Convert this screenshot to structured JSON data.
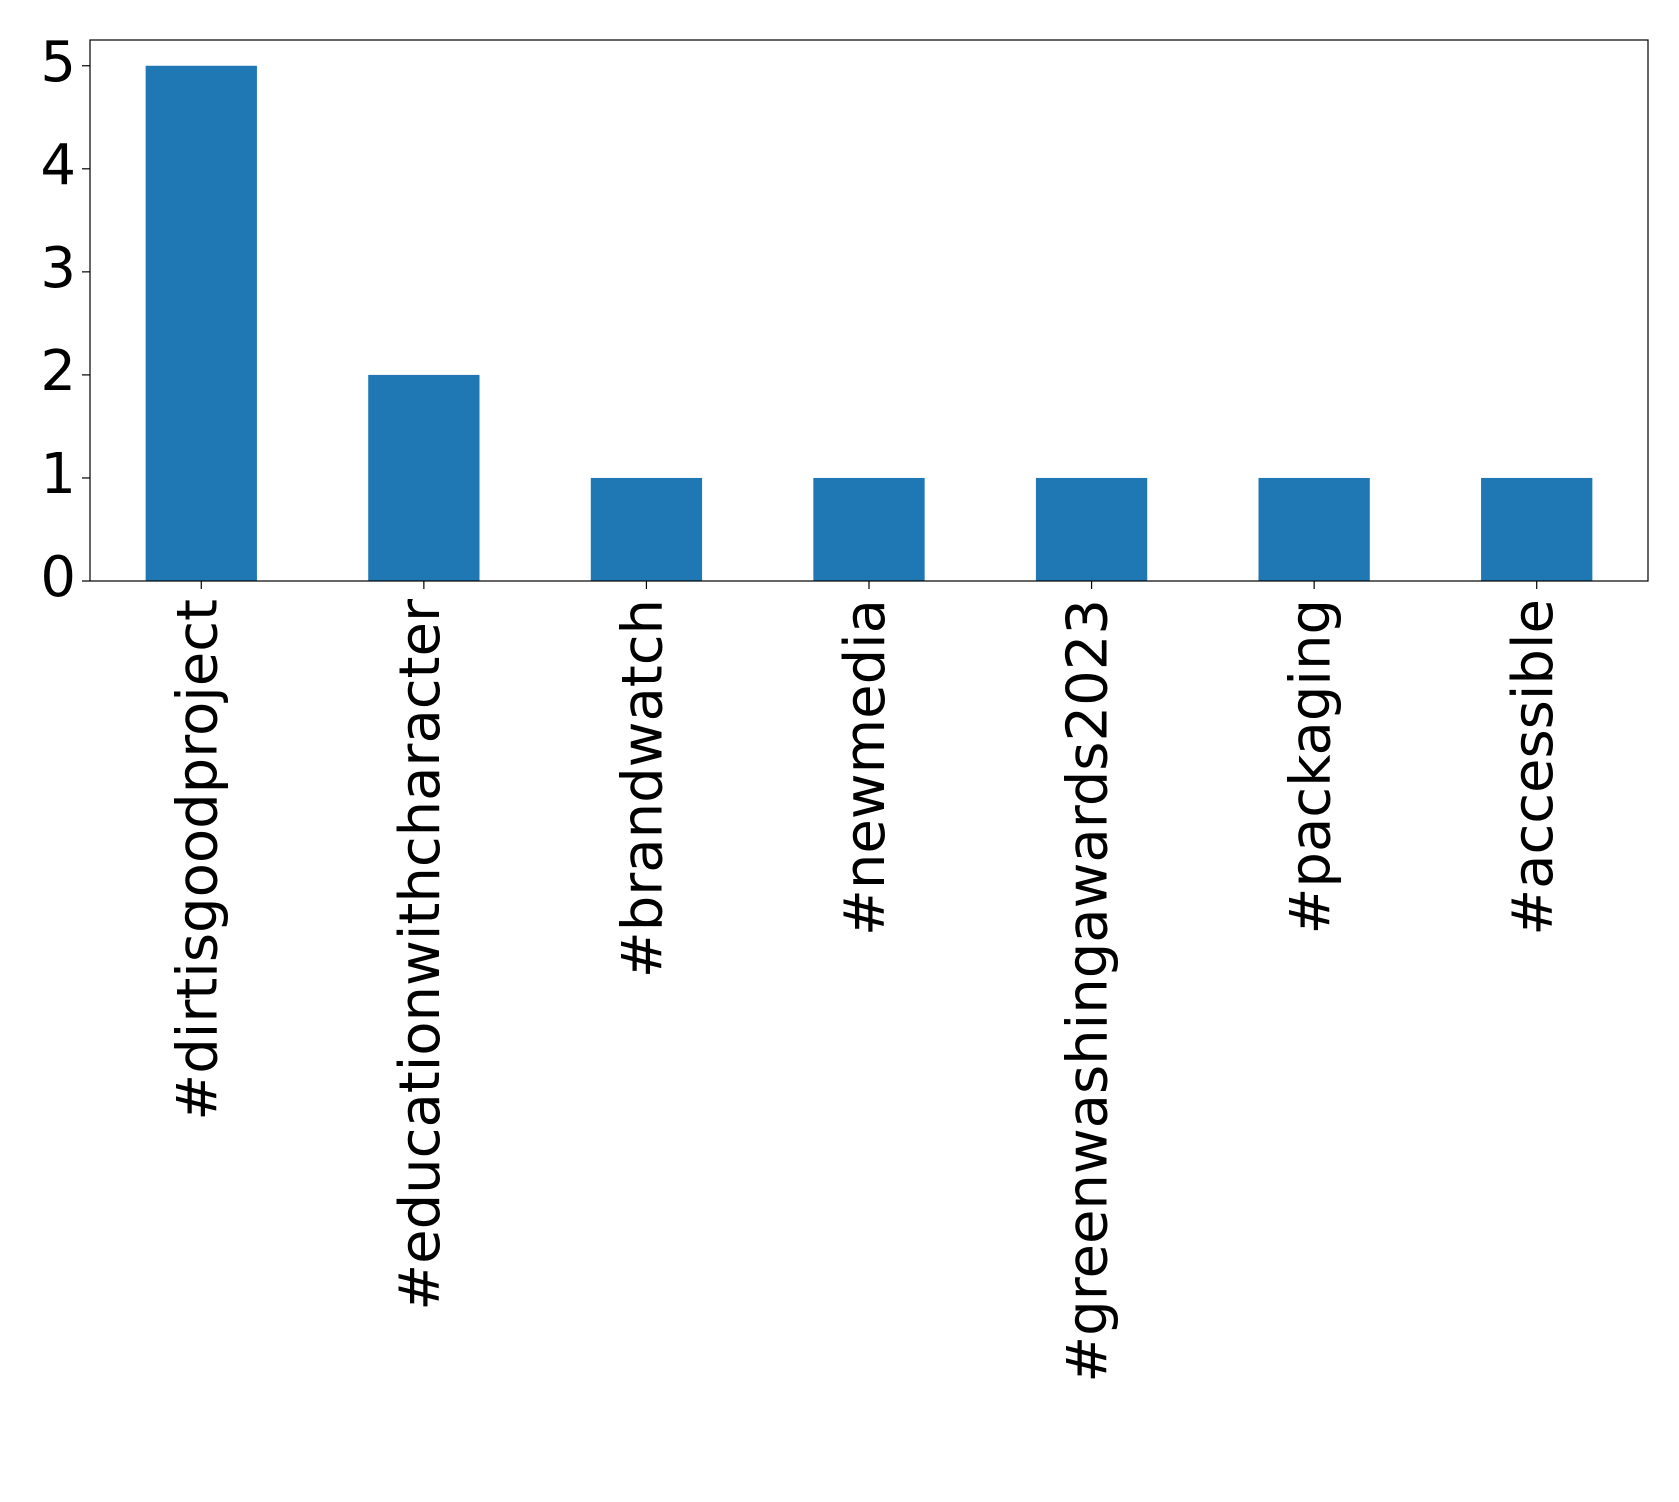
{
  "chart_data": {
    "type": "bar",
    "categories": [
      "#dirtisgoodproject",
      "#educationwithcharacter",
      "#brandwatch",
      "#newmedia",
      "#greenwashingawards2023",
      "#packaging",
      "#accessible"
    ],
    "values": [
      5,
      2,
      1,
      1,
      1,
      1,
      1
    ],
    "color": "#1f77b4",
    "ylim": [
      0,
      5.25
    ],
    "yticks": [
      0,
      1,
      2,
      3,
      4,
      5
    ],
    "grid": false
  }
}
